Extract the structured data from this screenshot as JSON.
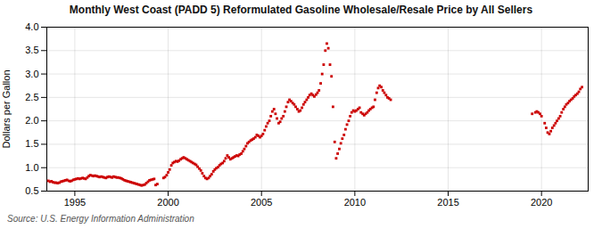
{
  "chart_data": {
    "type": "scatter",
    "title": "Monthly West Coast (PADD 5) Reformulated Gasoline Wholesale/Resale Price by All Sellers",
    "ylabel": "Dollars per Gallon",
    "annotations": [
      "Source: U.S. Energy Information Administration"
    ],
    "color": "#CC0000",
    "marker": "square",
    "grid": true,
    "xlim": [
      1993.5,
      2022.5
    ],
    "ylim": [
      0.5,
      4.0
    ],
    "xticks": [
      1995,
      2000,
      2005,
      2010,
      2015,
      2020
    ],
    "yticks": [
      0.5,
      {
        "value": 1.0,
        "label": "1.0"
      },
      1.5,
      {
        "value": 2.0,
        "label": "2.0"
      },
      2.5,
      {
        "value": 3.0,
        "label": "3.0"
      },
      3.5,
      {
        "value": 4.0,
        "label": "4.0"
      }
    ],
    "x": [
      1993.58,
      1993.67,
      1993.75,
      1993.83,
      1993.92,
      1994.0,
      1994.08,
      1994.17,
      1994.25,
      1994.33,
      1994.42,
      1994.5,
      1994.58,
      1994.67,
      1994.75,
      1994.83,
      1994.92,
      1995.0,
      1995.08,
      1995.17,
      1995.25,
      1995.33,
      1995.42,
      1995.5,
      1995.58,
      1995.67,
      1995.75,
      1995.83,
      1995.92,
      1996.0,
      1996.08,
      1996.17,
      1996.25,
      1996.33,
      1996.42,
      1996.5,
      1996.58,
      1996.67,
      1996.75,
      1996.83,
      1996.92,
      1997.0,
      1997.08,
      1997.17,
      1997.25,
      1997.33,
      1997.42,
      1997.5,
      1997.58,
      1997.67,
      1997.75,
      1997.83,
      1997.92,
      1998.0,
      1998.08,
      1998.17,
      1998.25,
      1998.33,
      1998.42,
      1998.5,
      1998.58,
      1998.67,
      1998.75,
      1998.83,
      1998.92,
      1999.0,
      1999.08,
      1999.17,
      1999.25,
      1999.33,
      1999.42,
      1999.75,
      1999.83,
      1999.92,
      2000.0,
      2000.08,
      2000.17,
      2000.25,
      2000.33,
      2000.42,
      2000.5,
      2000.58,
      2000.67,
      2000.75,
      2000.83,
      2000.92,
      2001.0,
      2001.08,
      2001.17,
      2001.25,
      2001.33,
      2001.42,
      2001.5,
      2001.58,
      2001.67,
      2001.75,
      2001.83,
      2001.92,
      2002.0,
      2002.08,
      2002.17,
      2002.25,
      2002.33,
      2002.42,
      2002.5,
      2002.58,
      2002.67,
      2002.75,
      2002.83,
      2002.92,
      2003.0,
      2003.08,
      2003.17,
      2003.25,
      2003.33,
      2003.42,
      2003.5,
      2003.58,
      2003.67,
      2003.75,
      2003.83,
      2003.92,
      2004.0,
      2004.08,
      2004.17,
      2004.25,
      2004.33,
      2004.42,
      2004.5,
      2004.58,
      2004.67,
      2004.75,
      2004.83,
      2004.92,
      2005.0,
      2005.08,
      2005.17,
      2005.25,
      2005.33,
      2005.42,
      2005.5,
      2005.58,
      2005.67,
      2005.75,
      2005.83,
      2005.92,
      2006.0,
      2006.08,
      2006.17,
      2006.25,
      2006.33,
      2006.42,
      2006.5,
      2006.58,
      2006.67,
      2006.75,
      2006.83,
      2006.92,
      2007.0,
      2007.08,
      2007.17,
      2007.25,
      2007.33,
      2007.42,
      2007.5,
      2007.58,
      2007.67,
      2007.75,
      2007.83,
      2007.92,
      2008.0,
      2008.08,
      2008.17,
      2008.25,
      2008.33,
      2008.42,
      2008.5,
      2008.58,
      2008.67,
      2008.75,
      2008.83,
      2008.92,
      2009.0,
      2009.08,
      2009.17,
      2009.25,
      2009.33,
      2009.42,
      2009.5,
      2009.58,
      2009.67,
      2009.75,
      2009.83,
      2009.92,
      2010.0,
      2010.08,
      2010.17,
      2010.25,
      2010.33,
      2010.42,
      2010.5,
      2010.58,
      2010.67,
      2010.75,
      2010.83,
      2010.92,
      2011.0,
      2011.08,
      2011.17,
      2011.25,
      2011.33,
      2011.42,
      2011.5,
      2011.58,
      2011.67,
      2011.75,
      2011.83,
      2011.92,
      2019.5,
      2019.67,
      2019.75,
      2019.83,
      2019.92,
      2020.0,
      2020.17,
      2020.25,
      2020.33,
      2020.42,
      2020.5,
      2020.58,
      2020.67,
      2020.75,
      2020.83,
      2020.92,
      2021.0,
      2021.08,
      2021.17,
      2021.25,
      2021.33,
      2021.42,
      2021.5,
      2021.58,
      2021.67,
      2021.75,
      2021.83,
      2021.92,
      2022.0,
      2022.08,
      2022.17
    ],
    "values": [
      0.72,
      0.7,
      0.71,
      0.69,
      0.68,
      0.68,
      0.67,
      0.68,
      0.7,
      0.71,
      0.72,
      0.73,
      0.74,
      0.72,
      0.71,
      0.72,
      0.74,
      0.75,
      0.76,
      0.77,
      0.76,
      0.77,
      0.78,
      0.77,
      0.76,
      0.79,
      0.82,
      0.84,
      0.83,
      0.82,
      0.83,
      0.82,
      0.81,
      0.8,
      0.81,
      0.8,
      0.79,
      0.78,
      0.8,
      0.81,
      0.8,
      0.79,
      0.81,
      0.8,
      0.79,
      0.79,
      0.78,
      0.77,
      0.75,
      0.73,
      0.72,
      0.71,
      0.7,
      0.69,
      0.68,
      0.67,
      0.66,
      0.65,
      0.64,
      0.63,
      0.62,
      0.63,
      0.64,
      0.67,
      0.7,
      0.73,
      0.74,
      0.75,
      0.76,
      0.63,
      0.65,
      0.78,
      0.8,
      0.84,
      0.9,
      0.96,
      1.05,
      1.1,
      1.12,
      1.14,
      1.13,
      1.15,
      1.18,
      1.2,
      1.22,
      1.2,
      1.18,
      1.16,
      1.14,
      1.12,
      1.1,
      1.08,
      1.06,
      1.02,
      0.98,
      0.94,
      0.88,
      0.82,
      0.78,
      0.76,
      0.78,
      0.82,
      0.86,
      0.92,
      0.96,
      0.99,
      1.01,
      1.05,
      1.08,
      1.1,
      1.14,
      1.2,
      1.26,
      1.22,
      1.18,
      1.2,
      1.22,
      1.24,
      1.26,
      1.25,
      1.28,
      1.3,
      1.35,
      1.4,
      1.46,
      1.52,
      1.55,
      1.58,
      1.6,
      1.62,
      1.65,
      1.7,
      1.68,
      1.65,
      1.68,
      1.72,
      1.8,
      1.88,
      1.95,
      2.0,
      2.1,
      2.2,
      2.25,
      2.15,
      2.05,
      1.95,
      1.98,
      2.05,
      2.1,
      2.2,
      2.3,
      2.4,
      2.45,
      2.42,
      2.38,
      2.35,
      2.3,
      2.25,
      2.2,
      2.22,
      2.28,
      2.35,
      2.4,
      2.45,
      2.5,
      2.55,
      2.58,
      2.55,
      2.52,
      2.56,
      2.6,
      2.65,
      2.8,
      3.0,
      3.2,
      3.5,
      3.65,
      3.55,
      3.2,
      2.95,
      2.3,
      1.55,
      1.2,
      1.3,
      1.4,
      1.52,
      1.62,
      1.7,
      1.82,
      1.92,
      2.0,
      2.1,
      2.18,
      2.22,
      2.2,
      2.22,
      2.25,
      2.28,
      2.18,
      2.15,
      2.12,
      2.15,
      2.18,
      2.22,
      2.25,
      2.28,
      2.3,
      2.45,
      2.6,
      2.7,
      2.75,
      2.72,
      2.65,
      2.6,
      2.55,
      2.5,
      2.48,
      2.45,
      2.15,
      2.18,
      2.2,
      2.18,
      2.15,
      2.1,
      1.95,
      1.85,
      1.75,
      1.72,
      1.78,
      1.85,
      1.9,
      1.95,
      2.0,
      2.05,
      2.1,
      2.18,
      2.25,
      2.3,
      2.35,
      2.38,
      2.42,
      2.45,
      2.48,
      2.52,
      2.55,
      2.58,
      2.62,
      2.68,
      2.72
    ]
  }
}
